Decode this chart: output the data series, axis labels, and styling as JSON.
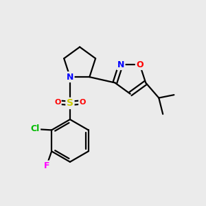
{
  "bg_color": "#ebebeb",
  "bond_color": "#000000",
  "atom_colors": {
    "N": "#0000ff",
    "O": "#ff0000",
    "S": "#cccc00",
    "Cl": "#00bb00",
    "F": "#ff00ff",
    "C": "#000000"
  },
  "figsize": [
    3.0,
    3.0
  ],
  "dpi": 100,
  "xlim": [
    0,
    10
  ],
  "ylim": [
    0,
    10
  ]
}
